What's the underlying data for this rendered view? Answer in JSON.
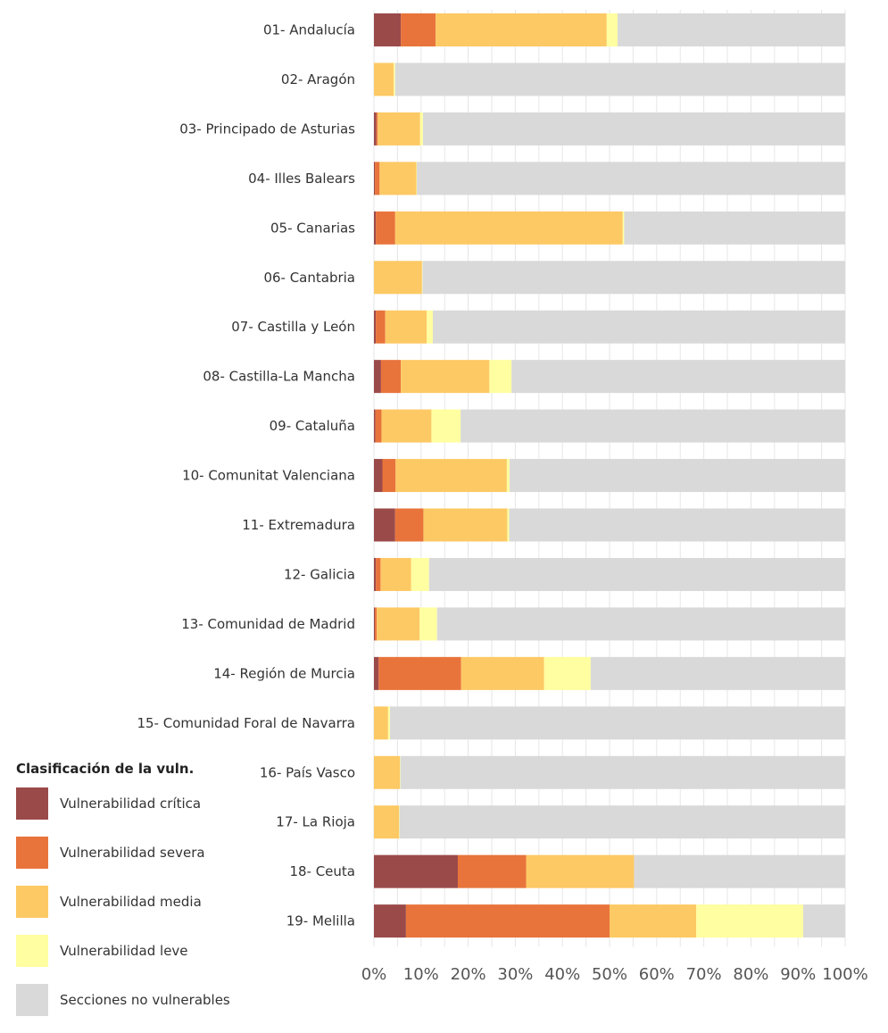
{
  "chart_data": {
    "type": "bar",
    "orientation": "horizontal",
    "stacked": true,
    "categories": [
      "01- Andalucía",
      "02- Aragón",
      "03- Principado de Asturias",
      "04- Illes Balears",
      "05- Canarias",
      "06- Cantabria",
      "07- Castilla y León",
      "08- Castilla-La Mancha",
      "09- Cataluña",
      "10- Comunitat Valenciana",
      "11- Extremadura",
      "12- Galicia",
      "13- Comunidad de Madrid",
      "14- Región de Murcia",
      "15- Comunidad Foral de Navarra",
      "16- País Vasco",
      "17- La Rioja",
      "18- Ceuta",
      "19- Melilla"
    ],
    "series": [
      {
        "name": "Vulnerabilidad crítica",
        "color": "#9b4a4a",
        "values": [
          5.7,
          0,
          0.5,
          0.2,
          0.4,
          0,
          0.4,
          1.5,
          0.3,
          1.8,
          4.5,
          0.4,
          0.2,
          1.0,
          0,
          0,
          0,
          17.8,
          6.8
        ]
      },
      {
        "name": "Vulnerabilidad severa",
        "color": "#e8743b",
        "values": [
          7.4,
          0,
          0.3,
          1.0,
          4.1,
          0,
          2.0,
          4.2,
          1.3,
          2.8,
          6.0,
          1.0,
          0.4,
          17.5,
          0,
          0,
          0,
          14.5,
          43.2
        ]
      },
      {
        "name": "Vulnerabilidad media",
        "color": "#fdc964",
        "values": [
          36.3,
          4.2,
          9.0,
          7.8,
          48.3,
          10.2,
          8.8,
          18.8,
          10.6,
          23.6,
          17.8,
          6.5,
          9.1,
          17.6,
          3.0,
          5.5,
          5.3,
          22.9,
          18.4
        ]
      },
      {
        "name": "Vulnerabilidad leve",
        "color": "#fffea0",
        "values": [
          2.3,
          0.3,
          0.6,
          0.1,
          0.3,
          0.1,
          1.3,
          4.7,
          6.2,
          0.6,
          0.4,
          3.8,
          3.7,
          9.9,
          0.4,
          0.1,
          0.1,
          0,
          22.7
        ]
      },
      {
        "name": "Secciones no vulnerables",
        "color": "#d9d9d9",
        "values": [
          48.3,
          95.5,
          89.6,
          90.9,
          46.9,
          89.7,
          87.5,
          70.8,
          81.6,
          71.2,
          71.3,
          88.3,
          86.6,
          54.0,
          96.6,
          94.4,
          94.6,
          44.8,
          8.9
        ]
      }
    ],
    "xlim": [
      0,
      100
    ],
    "x_ticks": [
      "0%",
      "10%",
      "20%",
      "30%",
      "40%",
      "50%",
      "60%",
      "70%",
      "80%",
      "90%",
      "100%"
    ],
    "grid": true,
    "legend_position": "bottom-left"
  },
  "legend": {
    "title": "Clasificación de la vuln."
  }
}
